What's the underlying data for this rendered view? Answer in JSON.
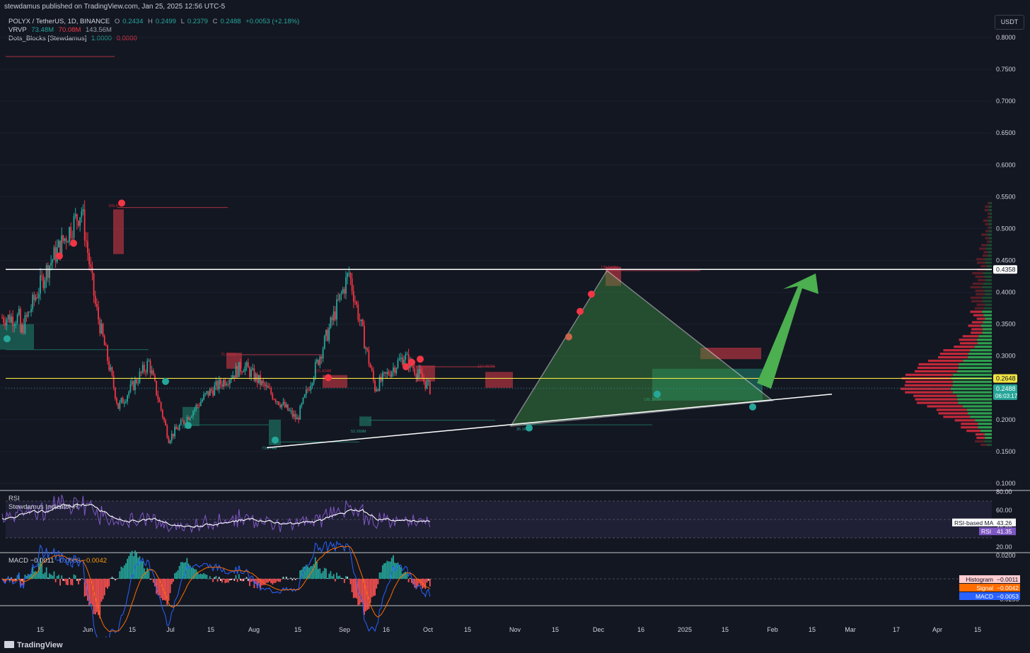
{
  "header": {
    "publish": "stewdamus published on TradingView.com, Jan 25, 2025 12:56 UTC-5",
    "symbol": "POLYX / TetherUS, 1D, BINANCE",
    "ohlc": {
      "o_label": "O",
      "o": "0.2434",
      "h_label": "H",
      "h": "0.2499",
      "l_label": "L",
      "l": "0.2379",
      "c_label": "C",
      "c": "0.2488",
      "change": "+0.0053 (+2.18%)"
    },
    "vrvp": {
      "label": "VRVP",
      "v1": "73.48M",
      "v2": "70.08M",
      "v3": "143.56M"
    },
    "dots": {
      "label": "Dots_Blocks [Stewdamus]",
      "v1": "1.0000",
      "v2": "0.0000"
    },
    "currency_button": "USDT"
  },
  "colors": {
    "background": "#131722",
    "up": "#26a69a",
    "down": "#f23645",
    "support_line": "#ffffff",
    "resistance_yellow": "#f0e442",
    "arrow": "#4caf50"
  },
  "chart_data": [
    {
      "type": "candlestick",
      "title": "POLYX / TetherUS, 1D, BINANCE",
      "x_ticks": [
        "15",
        "Jun",
        "15",
        "Jul",
        "15",
        "Aug",
        "15",
        "Sep",
        "16",
        "Oct",
        "15",
        "Nov",
        "15",
        "Dec",
        "16",
        "2025",
        "15",
        "Feb",
        "15",
        "Mar",
        "17",
        "Apr",
        "15"
      ],
      "y_ticks": [
        "0.8000",
        "0.7500",
        "0.7000",
        "0.6500",
        "0.6000",
        "0.5500",
        "0.5000",
        "0.4500",
        "0.4000",
        "0.3500",
        "0.3000",
        "0.2500",
        "0.2000",
        "0.1500",
        "0.1000"
      ],
      "y_range": [
        0.1,
        0.8
      ],
      "price_tags": [
        {
          "label": "0.4358",
          "value": 0.4358
        },
        {
          "label": "0.2648",
          "value": 0.2648
        },
        {
          "label": "0.2488",
          "value": 0.2488,
          "sub": "06:03:17"
        }
      ],
      "key_points": [
        {
          "date": "2024-05-01",
          "price": 0.33
        },
        {
          "date": "2024-05-20",
          "price": 0.44
        },
        {
          "date": "2024-06-11",
          "price": 0.53
        },
        {
          "date": "2024-06-20",
          "price": 0.38
        },
        {
          "date": "2024-07-05",
          "price": 0.22
        },
        {
          "date": "2024-07-25",
          "price": 0.29
        },
        {
          "date": "2024-08-07",
          "price": 0.17
        },
        {
          "date": "2024-09-01",
          "price": 0.24
        },
        {
          "date": "2024-09-25",
          "price": 0.285
        },
        {
          "date": "2024-10-30",
          "price": 0.2
        },
        {
          "date": "2024-12-03",
          "price": 0.43
        },
        {
          "date": "2024-12-20",
          "price": 0.25
        },
        {
          "date": "2025-01-08",
          "price": 0.3
        },
        {
          "date": "2025-01-25",
          "price": 0.2488
        }
      ],
      "annotations": [
        "165.8",
        "71.231M",
        "225.404M",
        "117.457M",
        "135.548M",
        "177.748M",
        "73.674M",
        "52.269M",
        "35.16",
        "195.392M"
      ],
      "lines": [
        {
          "name": "resistance",
          "value": 0.4358
        },
        {
          "name": "yellow-level",
          "value": 0.2648
        }
      ]
    },
    {
      "type": "line",
      "title": "RSI",
      "subtitle": "Stewdamus Indicator H",
      "y_ticks": [
        "80.00",
        "60.00",
        "40.00",
        "20.00"
      ],
      "y_range": [
        20,
        80
      ],
      "series": [
        {
          "name": "RSI-based MA",
          "last": "43.26"
        },
        {
          "name": "RSI",
          "last": "41.35"
        }
      ]
    },
    {
      "type": "bar",
      "title": "MACD",
      "values_text": [
        "−0.0011",
        "−0.0053",
        "−0.0042"
      ],
      "y_ticks": [
        "0.0200",
        "−0.0200"
      ],
      "y_range": [
        -0.02,
        0.02
      ],
      "series": [
        {
          "name": "Histogram",
          "last": "−0.0011"
        },
        {
          "name": "Signal",
          "last": "−0.0042"
        },
        {
          "name": "MACD",
          "last": "−0.0053"
        }
      ]
    }
  ],
  "footer": {
    "brand": "TradingView"
  }
}
